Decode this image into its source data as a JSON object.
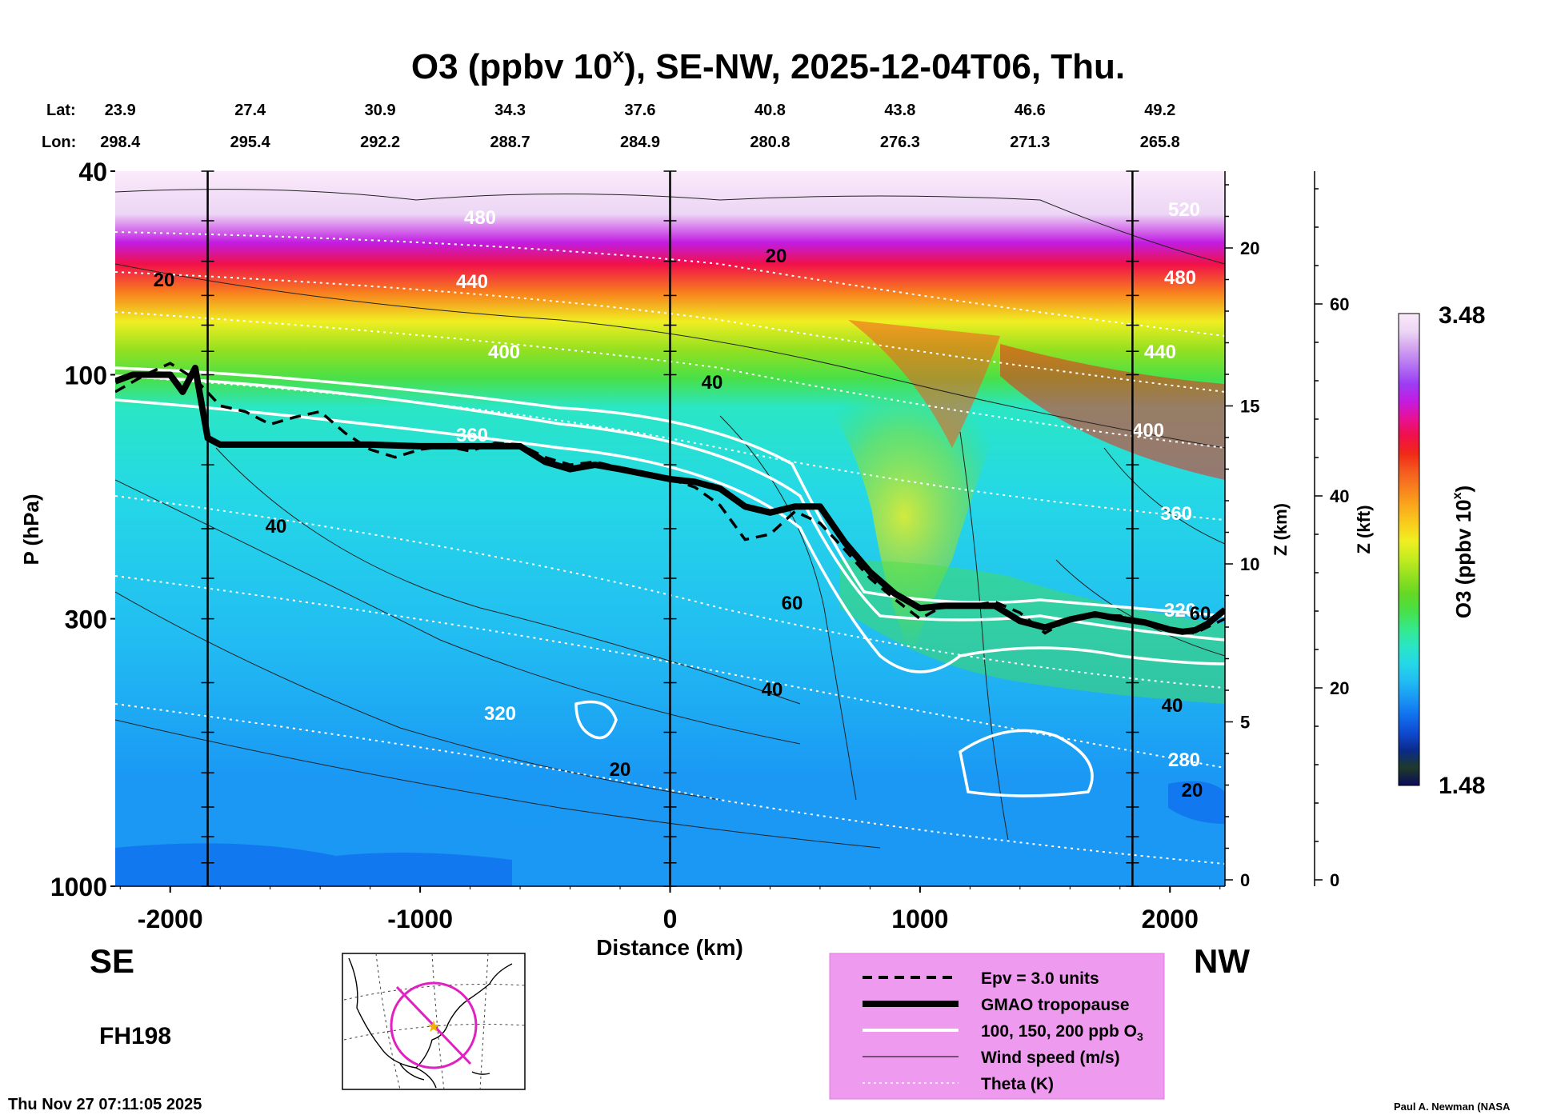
{
  "chart_data": {
    "type": "heatmap",
    "title_main": "O3 (ppbv 10",
    "title_exp": "x",
    "title_rest": "), SE-NW, 2025-12-04T06, Thu.",
    "lat_label": "Lat:",
    "lon_label": "Lon:",
    "lat": [
      "23.9",
      "27.4",
      "30.9",
      "34.3",
      "37.6",
      "40.8",
      "43.8",
      "46.6",
      "49.2"
    ],
    "lon": [
      "298.4",
      "295.4",
      "292.2",
      "288.7",
      "284.9",
      "280.8",
      "276.3",
      "271.3",
      "265.8"
    ],
    "latlon_distance_km": [
      -2200,
      -1680,
      -1160,
      -640,
      -120,
      400,
      920,
      1440,
      1960
    ],
    "xlabel": "Distance (km)",
    "xlim": [
      -2220,
      2220
    ],
    "xticks": [
      -2000,
      -1000,
      0,
      1000,
      2000
    ],
    "xtick_labels": [
      "-2000",
      "-1000",
      "0",
      "1000",
      "2000"
    ],
    "ylabel": "P (hPa)",
    "ylim_hPa": [
      1000,
      40
    ],
    "yticks": [
      40,
      100,
      300,
      1000
    ],
    "ytick_labels": [
      "40",
      "100",
      "300",
      "1000"
    ],
    "z_km_label": "Z (km)",
    "z_km_ticks": [
      0,
      5,
      10,
      15,
      20
    ],
    "z_km_labels": [
      "0",
      "5",
      "10",
      "15",
      "20"
    ],
    "z_kft_label": "Z (kft)",
    "z_kft_ticks": [
      0,
      20,
      40,
      60
    ],
    "z_kft_labels": [
      "0",
      "20",
      "40",
      "60"
    ],
    "left_dir": "SE",
    "right_dir": "NW",
    "forecast_hour": "FH198",
    "timestamp": "Thu Nov 27 07:11:05 2025",
    "credit": "Paul A. Newman (NASA",
    "colorbar": {
      "label_main": "O3 (ppbv 10",
      "label_exp": "x",
      "label_end": ")",
      "min": 1.48,
      "max": 3.48,
      "min_label": "1.48",
      "max_label": "3.48",
      "colors": [
        "#0a0a5a",
        "#1e3a28",
        "#0a2a8a",
        "#0f4ad0",
        "#1070ee",
        "#1a98f4",
        "#22bdf2",
        "#25d8e6",
        "#2ae6c4",
        "#36e88a",
        "#48e048",
        "#66d824",
        "#94e020",
        "#c4ec20",
        "#f0ee22",
        "#f8cc1c",
        "#faa81c",
        "#f8801e",
        "#f45a1e",
        "#f02818",
        "#f0104a",
        "#e81096",
        "#c21ce2",
        "#9c3ef4",
        "#b472f2",
        "#d2a2ef",
        "#ecd6f5",
        "#fbeafa"
      ]
    },
    "vertical_lines_km": [
      -1850,
      0,
      1850
    ],
    "tropopause_hPa": {
      "x": [
        -2220,
        -2150,
        -2000,
        -1950,
        -1900,
        -1850,
        -1800,
        -1600,
        -1400,
        -1200,
        -1000,
        -800,
        -600,
        -500,
        -400,
        -300,
        -200,
        0,
        100,
        200,
        300,
        400,
        500,
        600,
        700,
        800,
        900,
        1000,
        1100,
        1200,
        1300,
        1400,
        1500,
        1600,
        1700,
        1800,
        1900,
        2000,
        2050,
        2100,
        2150,
        2220
      ],
      "y": [
        103,
        100,
        100,
        108,
        97,
        133,
        137,
        137,
        137,
        137,
        138,
        138,
        138,
        148,
        153,
        150,
        153,
        160,
        162,
        167,
        181,
        186,
        181,
        181,
        213,
        243,
        268,
        286,
        283,
        283,
        283,
        303,
        312,
        301,
        294,
        300,
        305,
        315,
        318,
        316,
        307,
        288
      ]
    },
    "epv_hPa": {
      "x": [
        -2220,
        -2100,
        -2000,
        -1900,
        -1800,
        -1700,
        -1600,
        -1500,
        -1400,
        -1300,
        -1200,
        -1100,
        -1000,
        -900,
        -800,
        -700,
        -600,
        -500,
        -400,
        -300,
        -200,
        -100,
        0,
        100,
        200,
        300,
        400,
        500,
        600,
        700,
        800,
        900,
        1000,
        1100,
        1200,
        1300,
        1400,
        1500,
        1600,
        1700,
        1800,
        1900,
        2000,
        2100,
        2220
      ],
      "y": [
        108,
        100,
        95,
        102,
        115,
        118,
        125,
        121,
        118,
        130,
        140,
        145,
        140,
        138,
        141,
        136,
        137,
        145,
        150,
        148,
        152,
        156,
        160,
        166,
        180,
        210,
        205,
        185,
        195,
        220,
        250,
        275,
        300,
        282,
        283,
        278,
        292,
        320,
        300,
        295,
        296,
        305,
        315,
        320,
        300
      ]
    },
    "o3_contours": [
      "100 ppb",
      "150 ppb",
      "200 ppb"
    ],
    "theta_labels": [
      "480",
      "440",
      "400",
      "360",
      "320",
      "520",
      "480",
      "440",
      "400",
      "360",
      "320",
      "280"
    ],
    "wind_labels": [
      "20",
      "40",
      "20",
      "40",
      "60",
      "40",
      "20",
      "60",
      "40",
      "20"
    ],
    "legend": {
      "items": [
        {
          "label": "Epv = 3.0 units",
          "style": "dashed"
        },
        {
          "label": "GMAO tropopause",
          "style": "thick"
        },
        {
          "label": "100, 150, 200 ppb O",
          "sub": "3",
          "style": "white"
        },
        {
          "label": "Wind speed (m/s)",
          "style": "thin"
        },
        {
          "label": "Theta (K)",
          "style": "dotted"
        }
      ]
    }
  }
}
